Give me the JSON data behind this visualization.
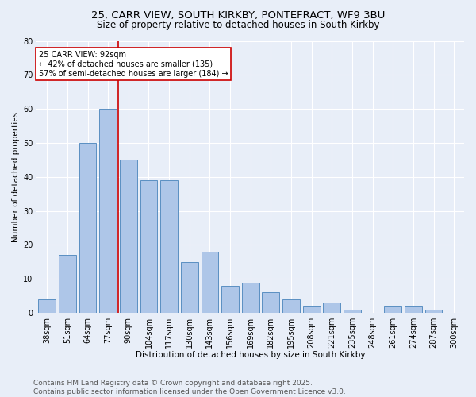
{
  "title1": "25, CARR VIEW, SOUTH KIRKBY, PONTEFRACT, WF9 3BU",
  "title2": "Size of property relative to detached houses in South Kirkby",
  "xlabel": "Distribution of detached houses by size in South Kirkby",
  "ylabel": "Number of detached properties",
  "bin_labels": [
    "38sqm",
    "51sqm",
    "64sqm",
    "77sqm",
    "90sqm",
    "104sqm",
    "117sqm",
    "130sqm",
    "143sqm",
    "156sqm",
    "169sqm",
    "182sqm",
    "195sqm",
    "208sqm",
    "221sqm",
    "235sqm",
    "248sqm",
    "261sqm",
    "274sqm",
    "287sqm",
    "300sqm"
  ],
  "values": [
    4,
    17,
    50,
    60,
    45,
    39,
    39,
    15,
    18,
    8,
    9,
    6,
    4,
    2,
    3,
    1,
    0,
    2,
    2,
    1,
    0
  ],
  "bar_color": "#aec6e8",
  "bar_edge_color": "#5a8fc2",
  "vline_color": "#cc0000",
  "annotation_text": "25 CARR VIEW: 92sqm\n← 42% of detached houses are smaller (135)\n57% of semi-detached houses are larger (184) →",
  "annotation_box_color": "#ffffff",
  "annotation_box_edge": "#cc0000",
  "ylim": [
    0,
    80
  ],
  "yticks": [
    0,
    10,
    20,
    30,
    40,
    50,
    60,
    70,
    80
  ],
  "footer_text": "Contains HM Land Registry data © Crown copyright and database right 2025.\nContains public sector information licensed under the Open Government Licence v3.0.",
  "bg_color": "#e8eef8",
  "plot_bg_color": "#e8eef8",
  "grid_color": "#ffffff",
  "title_fontsize": 9.5,
  "title2_fontsize": 8.5,
  "axis_label_fontsize": 7.5,
  "tick_fontsize": 7,
  "annotation_fontsize": 7,
  "footer_fontsize": 6.5,
  "vline_bin_index": 4
}
